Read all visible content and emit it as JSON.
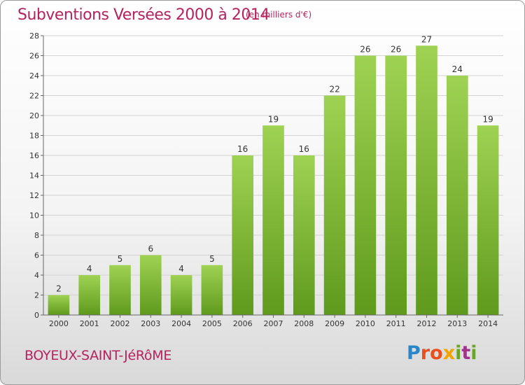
{
  "chart_data": {
    "type": "bar",
    "title": "Subventions Versées 2000 à 2014",
    "subtitle": "(en milliers d'€)",
    "categories": [
      "2000",
      "2001",
      "2002",
      "2003",
      "2004",
      "2005",
      "2006",
      "2007",
      "2008",
      "2009",
      "2010",
      "2011",
      "2012",
      "2013",
      "2014"
    ],
    "values": [
      2,
      4,
      5,
      6,
      4,
      5,
      16,
      19,
      16,
      22,
      26,
      26,
      27,
      24,
      19
    ],
    "ylim": [
      0,
      28
    ],
    "yticks": [
      0,
      2,
      4,
      6,
      8,
      10,
      12,
      14,
      16,
      18,
      20,
      22,
      24,
      26,
      28
    ],
    "grid": true,
    "bar_color": "#7cb934"
  },
  "footer": {
    "commune": "BOYEUX-SAINT-JéRôME",
    "logo_text": "Proxiti"
  }
}
